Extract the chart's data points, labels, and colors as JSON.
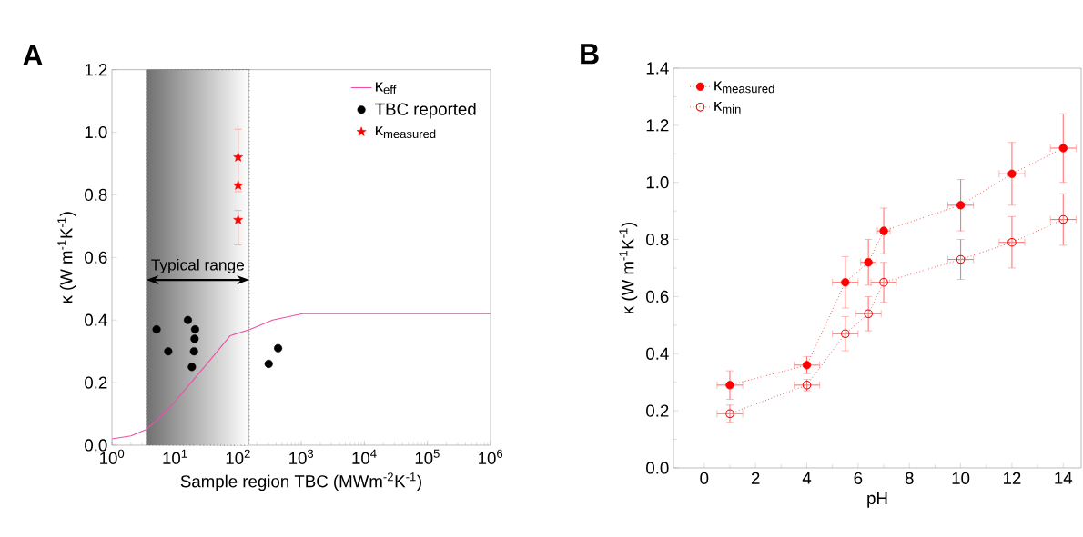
{
  "chart_data": [
    {
      "type": "scatter",
      "title": "A",
      "xlabel": "Sample region TBC (MWm$^{-2}$K$^{-1}$)",
      "ylabel": "κ (W m$^{-1}$K$^{-1}$)",
      "log": "x",
      "xlim": [
        1,
        1000000
      ],
      "ylim": [
        0,
        1.2
      ],
      "xticks": [
        {
          "value": 1,
          "label": "10$^{0}$"
        },
        {
          "value": 10,
          "label": "10$^{1}$"
        },
        {
          "value": 100,
          "label": "10$^{2}$"
        },
        {
          "value": 1000,
          "label": "10$^{3}$"
        },
        {
          "value": 10000,
          "label": "10$^{4}$"
        },
        {
          "value": 100000,
          "label": "10$^{5}$"
        },
        {
          "value": 1000000,
          "label": "10$^{6}$"
        }
      ],
      "yticks": [
        {
          "value": 0,
          "label": "0.0"
        },
        {
          "value": 0.2,
          "label": "0.2"
        },
        {
          "value": 0.4,
          "label": "0.4"
        },
        {
          "value": 0.6,
          "label": "0.6"
        },
        {
          "value": 0.8,
          "label": "0.8"
        },
        {
          "value": 1.0,
          "label": "1.0"
        },
        {
          "value": 1.2,
          "label": "1.2"
        }
      ],
      "grid": false,
      "legend": "top right",
      "bands": [
        {
          "axis": "x",
          "from": 3.5,
          "to": 150,
          "label": "Typical range",
          "color": "#707070"
        }
      ],
      "series": [
        {
          "name": "κ$_{eff}$",
          "type": "line",
          "color": "#ee4fa5",
          "marker": "none",
          "line_style": "solid",
          "x": [
            1,
            2,
            3.5,
            7.4,
            10,
            17.9,
            38.7,
            75,
            155,
            352,
            1047,
            10000,
            1000000
          ],
          "values": [
            0.02,
            0.03,
            0.05,
            0.11,
            0.14,
            0.2,
            0.28,
            0.35,
            0.37,
            0.4,
            0.42,
            0.42,
            0.42
          ]
        },
        {
          "name": "TBC reported",
          "type": "scatter",
          "color": "#000000",
          "marker": "circle",
          "x": [
            5.1,
            7.8,
            16,
            20.8,
            20.4,
            20,
            18.5,
            305,
            430
          ],
          "values": [
            0.37,
            0.3,
            0.4,
            0.37,
            0.34,
            0.3,
            0.25,
            0.26,
            0.31
          ]
        },
        {
          "name": "κ$_{measured}$",
          "type": "scatter",
          "color": "#ff0000",
          "marker": "star",
          "x": [
            100,
            100,
            100
          ],
          "values": [
            0.92,
            0.83,
            0.72
          ],
          "errors": [
            [
              0.81,
              1.01
            ],
            null,
            [
              0.64,
              0.75
            ]
          ]
        }
      ]
    },
    {
      "type": "line",
      "title": "B",
      "xlabel": "pH",
      "ylabel": "κ (W m$^{-1}$K$^{-1}$)",
      "xlim": [
        -1.2,
        14.7
      ],
      "ylim": [
        0,
        1.4
      ],
      "xticks": [
        0,
        2,
        4,
        6,
        8,
        10,
        12,
        14
      ],
      "yticks": [
        {
          "value": 0,
          "label": "0.0"
        },
        {
          "value": 0.2,
          "label": "0.2"
        },
        {
          "value": 0.4,
          "label": "0.4"
        },
        {
          "value": 0.6,
          "label": "0.6"
        },
        {
          "value": 0.8,
          "label": "0.8"
        },
        {
          "value": 1.0,
          "label": "1.0"
        },
        {
          "value": 1.2,
          "label": "1.2"
        },
        {
          "value": 1.4,
          "label": "1.4"
        }
      ],
      "grid": false,
      "legend": "top left",
      "marker": "circle",
      "line_style": "dotted",
      "x": [
        1,
        4,
        5.5,
        6.4,
        7,
        10,
        12,
        14
      ],
      "series": [
        {
          "name": "κ$_{measured}$",
          "color": "#ff0000",
          "values": [
            0.29,
            0.36,
            0.65,
            0.72,
            0.83,
            0.92,
            1.03,
            1.12
          ],
          "errors": [
            0.05,
            0.03,
            0.09,
            0.08,
            0.08,
            0.09,
            0.11,
            0.12
          ],
          "xerrors": [
            0.5,
            0.5,
            0.5,
            0.3,
            0.25,
            0.5,
            0.5,
            0.5
          ]
        },
        {
          "name": "κ$_{min}$",
          "color": "#ff0000",
          "values": [
            0.19,
            0.29,
            0.47,
            0.54,
            0.65,
            0.73,
            0.79,
            0.87
          ],
          "errors": [
            0.03,
            0.02,
            0.06,
            0.06,
            0.07,
            0.07,
            0.09,
            0.09
          ],
          "xerrors": [
            0.5,
            0.5,
            0.5,
            0.5,
            0.5,
            0.5,
            0.5,
            0.5
          ]
        }
      ]
    }
  ]
}
